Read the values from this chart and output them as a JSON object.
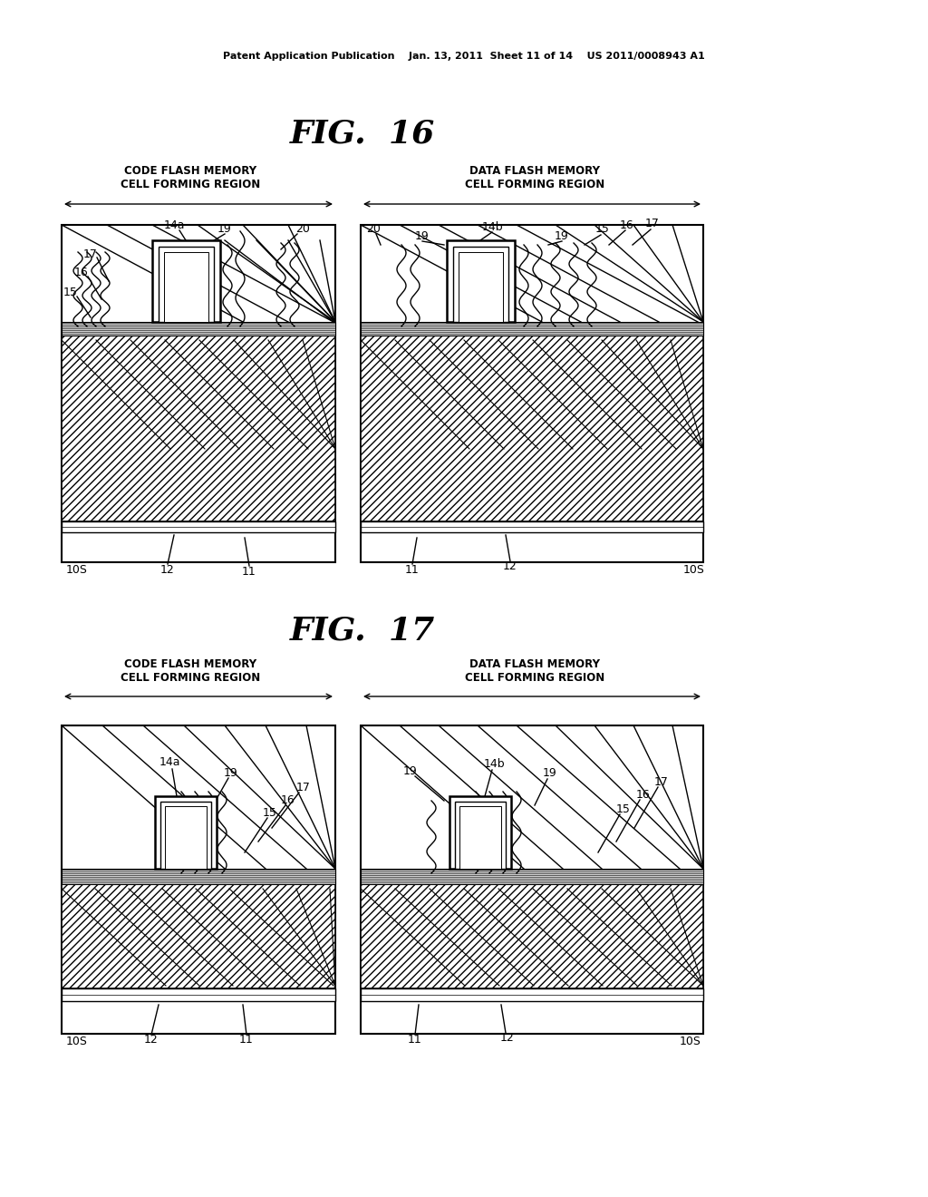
{
  "bg": "#ffffff",
  "header": "Patent Application Publication    Jan. 13, 2011  Sheet 11 of 14    US 2011/0008943 A1",
  "fig16_title": "FIG.  16",
  "fig17_title": "FIG.  17",
  "code_label": "CODE FLASH MEMORY\nCELL FORMING REGION",
  "data_label": "DATA FLASH MEMORY\nCELL FORMING REGION"
}
